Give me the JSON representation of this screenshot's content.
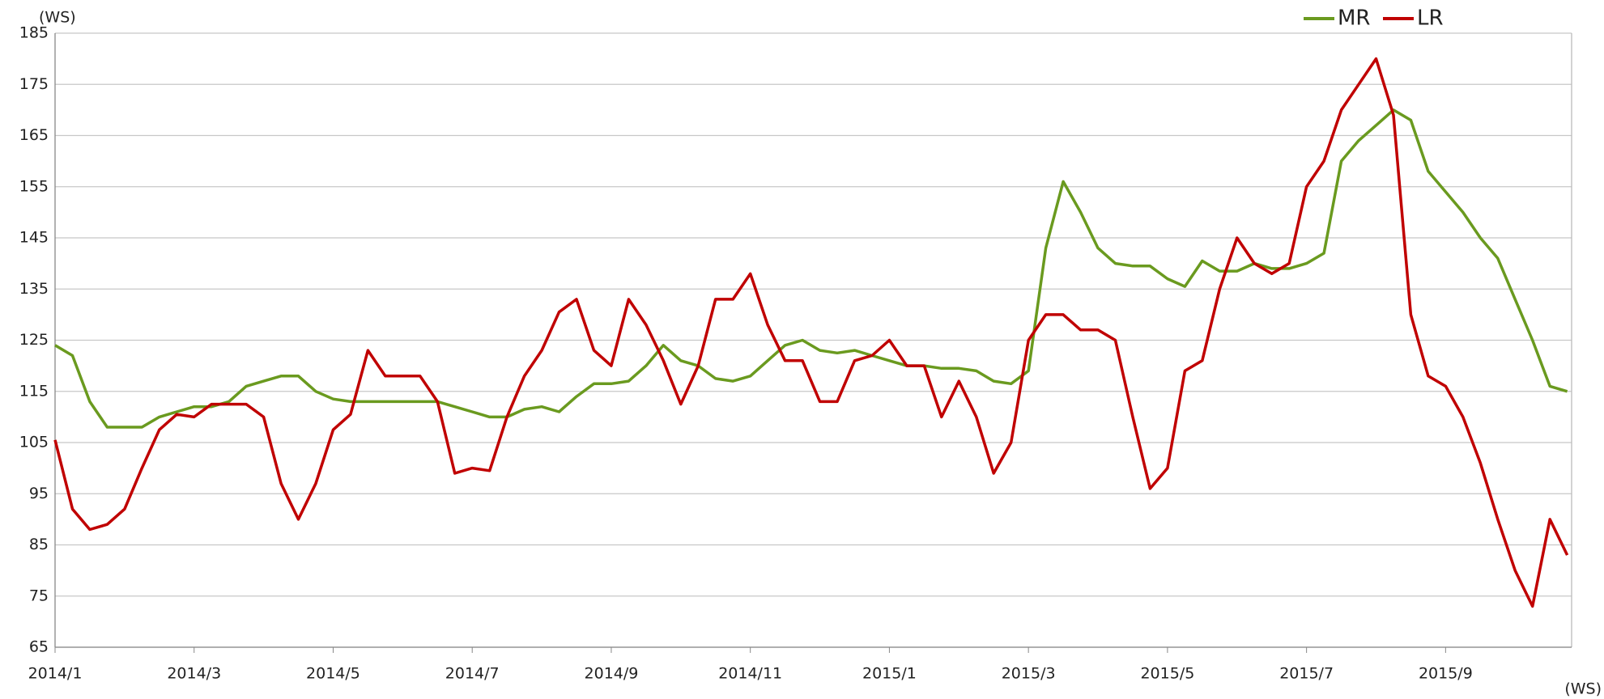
{
  "chart_data": {
    "type": "line",
    "y_unit": "(WS)",
    "x_unit": "(WS)",
    "categories": [
      "2014/1",
      null,
      null,
      null,
      null,
      null,
      null,
      null,
      "2014/3",
      null,
      null,
      null,
      null,
      null,
      null,
      null,
      "2014/5",
      null,
      null,
      null,
      null,
      null,
      null,
      null,
      "2014/7",
      null,
      null,
      null,
      null,
      null,
      null,
      null,
      "2014/9",
      null,
      null,
      null,
      null,
      null,
      null,
      null,
      "2014/11",
      null,
      null,
      null,
      null,
      null,
      null,
      null,
      "2015/1",
      null,
      null,
      null,
      null,
      null,
      null,
      null,
      "2015/3",
      null,
      null,
      null,
      null,
      null,
      null,
      null,
      "2015/5",
      null,
      null,
      null,
      null,
      null,
      null,
      null,
      "2015/7",
      null,
      null,
      null,
      null,
      null,
      null,
      null,
      "2015/9",
      null,
      null,
      null,
      null,
      null,
      null,
      null
    ],
    "series": [
      {
        "name": "MR",
        "color": "#6a9a1f",
        "values": [
          124,
          122,
          113,
          108,
          108,
          108,
          110,
          111,
          112,
          112,
          113,
          116,
          117,
          118,
          118,
          115,
          113.5,
          113,
          113,
          113,
          113,
          113,
          113,
          112,
          111,
          110,
          110,
          111.5,
          112,
          111,
          114,
          116.5,
          116.5,
          117,
          120,
          124,
          121,
          120,
          117.5,
          117,
          118,
          121,
          124,
          125,
          123,
          122.5,
          123,
          122,
          121,
          120,
          120,
          119.5,
          119.5,
          119,
          117,
          116.5,
          119,
          143,
          156,
          150,
          143,
          140,
          139.5,
          139.5,
          137,
          135.5,
          140.5,
          138.5,
          138.5,
          140,
          139,
          139,
          140,
          142,
          160,
          164,
          167,
          170,
          168,
          158,
          154,
          150,
          145,
          141,
          133,
          125,
          116,
          115
        ]
      },
      {
        "name": "LR",
        "color": "#c00000",
        "values": [
          105.5,
          92,
          88,
          89,
          92,
          100,
          107.5,
          110.5,
          110,
          112.5,
          112.5,
          112.5,
          110,
          97,
          90,
          97,
          107.5,
          110.5,
          123,
          118,
          118,
          118,
          113,
          99,
          100,
          99.5,
          110,
          118,
          123,
          130.5,
          133,
          123,
          120,
          133,
          128,
          121,
          112.5,
          120,
          133,
          133,
          138,
          128,
          121,
          121,
          113,
          113,
          121,
          122,
          125,
          120,
          120,
          110,
          117,
          110,
          99,
          105,
          125,
          130,
          130,
          127,
          127,
          125,
          110,
          96,
          100,
          119,
          121,
          135,
          145,
          140,
          138,
          140,
          155,
          160,
          170,
          175,
          180,
          169,
          130,
          118,
          116,
          110,
          101,
          90,
          80,
          73,
          90,
          83
        ]
      }
    ],
    "ylim": [
      65,
      185
    ],
    "yticks": [
      65,
      75,
      85,
      95,
      105,
      115,
      125,
      135,
      145,
      155,
      165,
      175,
      185
    ],
    "grid": true,
    "legend": "top-right"
  }
}
